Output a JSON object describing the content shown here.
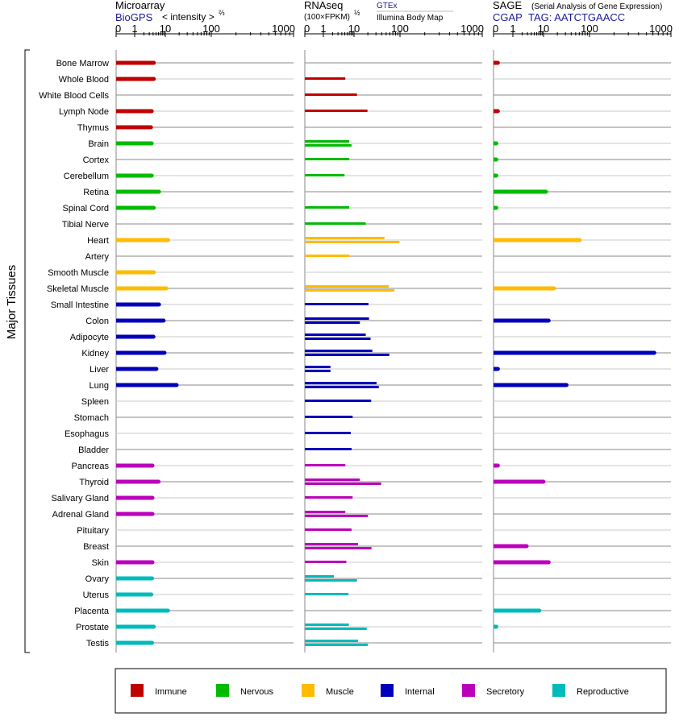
{
  "panels": {
    "microarray": {
      "title": "Microarray",
      "link": "BioGPS",
      "unit_main": "< intensity >",
      "unit_exp": "⅔"
    },
    "rnaseq": {
      "title": "RNAseq",
      "unit_main": "(100×FPKM)",
      "unit_exp": "½",
      "source_gtex": "GTEx",
      "source_illumina": "Illumina Body Map"
    },
    "sage": {
      "title": "SAGE",
      "subtitle": "(Serial Analysis of Gene Expression)",
      "link": "CGAP",
      "tag": "TAG: AATCTGAACC"
    }
  },
  "ticks": [
    "0",
    "1",
    "10",
    "100",
    "1000"
  ],
  "y_group_label": "Major Tissues",
  "legend": [
    {
      "label": "Immune",
      "color": "#c00000"
    },
    {
      "label": "Nervous",
      "color": "#00bb00"
    },
    {
      "label": "Muscle",
      "color": "#ffbb00"
    },
    {
      "label": "Internal",
      "color": "#0000bb"
    },
    {
      "label": "Secretory",
      "color": "#bb00bb"
    },
    {
      "label": "Reproductive",
      "color": "#00bbbb"
    }
  ],
  "chart_data": {
    "type": "bar",
    "orientation": "horizontal",
    "x_scale": "root",
    "x_range": [
      0,
      1000
    ],
    "categories": [
      "Bone Marrow",
      "Whole Blood",
      "White Blood Cells",
      "Lymph Node",
      "Thymus",
      "Brain",
      "Cortex",
      "Cerebellum",
      "Retina",
      "Spinal Cord",
      "Tibial Nerve",
      "Heart",
      "Artery",
      "Smooth Muscle",
      "Skeletal Muscle",
      "Small Intestine",
      "Colon",
      "Adipocyte",
      "Kidney",
      "Liver",
      "Lung",
      "Spleen",
      "Stomach",
      "Esophagus",
      "Bladder",
      "Pancreas",
      "Thyroid",
      "Salivary Gland",
      "Adrenal Gland",
      "Pituitary",
      "Breast",
      "Skin",
      "Ovary",
      "Uterus",
      "Placenta",
      "Prostate",
      "Testis"
    ],
    "groups": [
      "Immune",
      "Immune",
      "Immune",
      "Immune",
      "Immune",
      "Nervous",
      "Nervous",
      "Nervous",
      "Nervous",
      "Nervous",
      "Nervous",
      "Muscle",
      "Muscle",
      "Muscle",
      "Muscle",
      "Internal",
      "Internal",
      "Internal",
      "Internal",
      "Internal",
      "Internal",
      "Internal",
      "Internal",
      "Internal",
      "Internal",
      "Secretory",
      "Secretory",
      "Secretory",
      "Secretory",
      "Secretory",
      "Secretory",
      "Secretory",
      "Reproductive",
      "Reproductive",
      "Reproductive",
      "Reproductive",
      "Reproductive"
    ],
    "microarray": [
      4.2,
      4.2,
      null,
      3.6,
      3.4,
      3.6,
      null,
      3.6,
      6.2,
      4.2,
      null,
      11.5,
      null,
      4.2,
      10.5,
      6.2,
      8.8,
      4.1,
      9.4,
      5.1,
      17.6,
      null,
      null,
      null,
      null,
      3.8,
      6.0,
      3.8,
      3.8,
      null,
      null,
      3.8,
      3.7,
      3.5,
      11.4,
      4.2,
      3.7
    ],
    "rnaseq_gtex": [
      null,
      5.2,
      11.6,
      19.6,
      null,
      7.0,
      7.0,
      4.9,
      null,
      7.0,
      18.0,
      46.0,
      7.0,
      null,
      57.2,
      20.6,
      21.2,
      18.0,
      25.0,
      1.7,
      30.9,
      23.6,
      9.0,
      7.8,
      8.3,
      5.2,
      13.4,
      9.0,
      5.2,
      8.3,
      12.2,
      5.6,
      2.2,
      6.6,
      null,
      6.8,
      12.2
    ],
    "rnaseq_illumina": [
      null,
      null,
      null,
      null,
      null,
      8.3,
      null,
      null,
      null,
      null,
      null,
      97.5,
      null,
      null,
      75.7,
      null,
      13.4,
      22.9,
      58.5,
      1.7,
      34.6,
      null,
      null,
      null,
      null,
      null,
      38.9,
      null,
      20.1,
      null,
      24.0,
      null,
      11.6,
      null,
      null,
      18.9,
      20.1
    ],
    "sage": [
      0.05,
      null,
      null,
      0.05,
      null,
      0.02,
      0.02,
      0.02,
      11.3,
      0.02,
      null,
      61.0,
      null,
      null,
      17.0,
      null,
      12.9,
      null,
      624.0,
      0.05,
      31.6,
      null,
      null,
      null,
      null,
      0.05,
      9.9,
      null,
      null,
      null,
      2.8,
      12.9,
      null,
      null,
      7.3,
      0.02,
      null
    ]
  }
}
